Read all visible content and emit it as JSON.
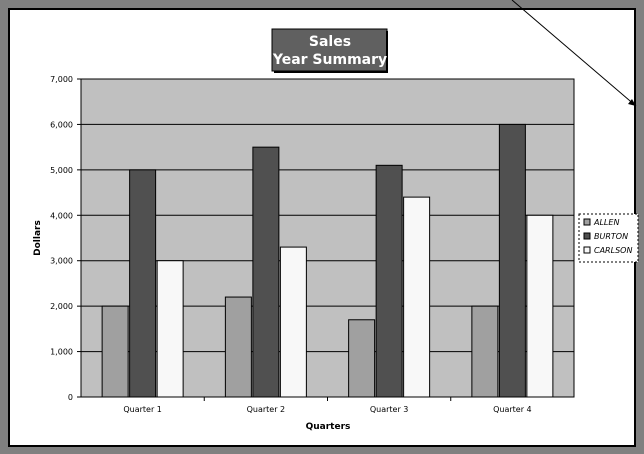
{
  "chart_data": {
    "type": "bar",
    "title": [
      "Sales",
      "Year Summary"
    ],
    "xlabel": "Quarters",
    "ylabel": "Dollars",
    "categories": [
      "Quarter 1",
      "Quarter 2",
      "Quarter 3",
      "Quarter 4"
    ],
    "ylim": [
      0,
      7000
    ],
    "yticks": [
      0,
      1000,
      2000,
      3000,
      4000,
      5000,
      6000,
      7000
    ],
    "ytick_labels": [
      "0",
      "1,000",
      "2,000",
      "3,000",
      "4,000",
      "5,000",
      "6,000",
      "7,000"
    ],
    "grid": true,
    "legend_position": "right",
    "series": [
      {
        "name": "ALLEN",
        "values": [
          2000,
          2200,
          1700,
          2000
        ],
        "color": "#a0a0a0"
      },
      {
        "name": "BURTON",
        "values": [
          5000,
          5500,
          5100,
          6000
        ],
        "color": "#505050"
      },
      {
        "name": "CARLSON",
        "values": [
          3000,
          3300,
          4400,
          4000
        ],
        "color": "#f8f8f8"
      }
    ],
    "colors": {
      "plot_area": "#c0c0c0",
      "title_box": "#606060",
      "chart_area": "#ffffff",
      "background": "#808080"
    }
  }
}
